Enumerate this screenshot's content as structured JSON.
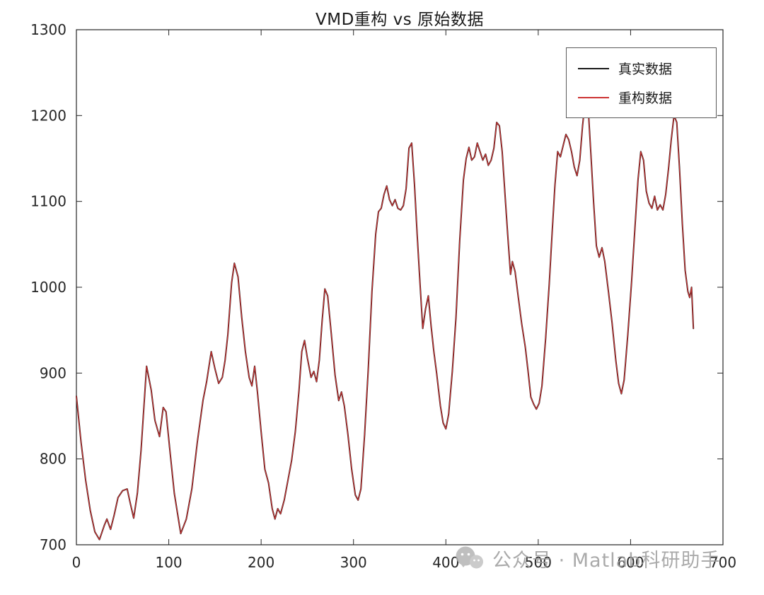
{
  "title": "VMD重构 vs 原始数据",
  "legend": {
    "items": [
      {
        "label": "真实数据",
        "color": "#1a1a1a"
      },
      {
        "label": "重构数据",
        "color": "#cc3333"
      }
    ]
  },
  "watermark": {
    "text": "公众号 · Matlab科研助手",
    "icon": "wechat-icon"
  },
  "axis_color": "#262626",
  "chart_data": {
    "type": "line",
    "title": "VMD重构 vs 原始数据",
    "xlabel": "",
    "ylabel": "",
    "xlim": [
      0,
      700
    ],
    "ylim": [
      700,
      1300
    ],
    "x_ticks": [
      0,
      100,
      200,
      300,
      400,
      500,
      600,
      700
    ],
    "y_ticks": [
      700,
      800,
      900,
      1000,
      1100,
      1200,
      1300
    ],
    "grid": false,
    "legend_position": "top-right",
    "x": [
      0,
      5,
      10,
      15,
      20,
      25,
      30,
      33,
      37,
      41,
      45,
      50,
      55,
      58,
      62,
      66,
      70,
      76,
      81,
      85,
      90,
      94,
      97,
      101,
      106,
      113,
      119,
      125,
      131,
      137,
      141,
      146,
      150,
      154,
      158,
      161,
      164,
      168,
      171,
      175,
      179,
      183,
      187,
      190,
      193,
      196,
      200,
      204,
      208,
      212,
      215,
      218,
      221,
      225,
      229,
      233,
      237,
      241,
      244,
      247,
      250,
      254,
      257,
      260,
      263,
      266,
      269,
      272,
      276,
      280,
      284,
      287,
      290,
      294,
      298,
      302,
      305,
      308,
      312,
      316,
      320,
      324,
      327,
      330,
      333,
      336,
      339,
      342,
      345,
      348,
      351,
      354,
      357,
      360,
      363,
      366,
      369,
      372,
      375,
      378,
      381,
      384,
      387,
      390,
      394,
      397,
      400,
      403,
      407,
      411,
      415,
      419,
      422,
      425,
      428,
      431,
      434,
      437,
      440,
      443,
      446,
      449,
      452,
      455,
      458,
      461,
      464,
      467,
      470,
      472,
      475,
      478,
      482,
      486,
      489,
      492,
      495,
      498,
      501,
      504,
      508,
      512,
      515,
      518,
      521,
      524,
      527,
      530,
      533,
      536,
      539,
      542,
      545,
      548,
      551,
      554,
      557,
      560,
      563,
      566,
      569,
      572,
      576,
      580,
      584,
      587,
      590,
      593,
      597,
      601,
      605,
      608,
      611,
      614,
      617,
      620,
      623,
      626,
      629,
      632,
      635,
      638,
      641,
      644,
      647,
      650,
      653,
      656,
      659,
      662,
      664,
      666,
      668
    ],
    "y": [
      873,
      820,
      775,
      740,
      715,
      706,
      722,
      730,
      718,
      735,
      755,
      763,
      765,
      750,
      731,
      760,
      810,
      908,
      880,
      845,
      826,
      860,
      855,
      812,
      760,
      713,
      730,
      765,
      820,
      868,
      890,
      925,
      905,
      888,
      895,
      915,
      945,
      1005,
      1028,
      1012,
      965,
      925,
      895,
      885,
      908,
      878,
      832,
      788,
      772,
      742,
      730,
      742,
      736,
      752,
      775,
      798,
      832,
      880,
      925,
      938,
      918,
      895,
      902,
      890,
      915,
      960,
      998,
      990,
      945,
      898,
      868,
      878,
      862,
      828,
      788,
      758,
      752,
      765,
      828,
      905,
      995,
      1062,
      1088,
      1092,
      1108,
      1118,
      1102,
      1095,
      1102,
      1092,
      1090,
      1095,
      1115,
      1162,
      1168,
      1120,
      1060,
      1005,
      952,
      975,
      990,
      955,
      925,
      900,
      862,
      842,
      835,
      852,
      902,
      965,
      1055,
      1125,
      1150,
      1163,
      1148,
      1152,
      1168,
      1158,
      1148,
      1155,
      1142,
      1148,
      1162,
      1192,
      1188,
      1158,
      1108,
      1060,
      1015,
      1030,
      1018,
      992,
      958,
      930,
      902,
      872,
      864,
      858,
      865,
      885,
      940,
      1005,
      1062,
      1118,
      1158,
      1152,
      1165,
      1178,
      1172,
      1158,
      1140,
      1130,
      1148,
      1188,
      1218,
      1210,
      1155,
      1098,
      1048,
      1035,
      1046,
      1030,
      995,
      958,
      915,
      888,
      876,
      892,
      945,
      1005,
      1075,
      1125,
      1158,
      1148,
      1112,
      1098,
      1092,
      1106,
      1090,
      1096,
      1090,
      1108,
      1138,
      1172,
      1200,
      1192,
      1138,
      1075,
      1020,
      995,
      988,
      1000,
      952
    ],
    "series": [
      {
        "name": "真实数据",
        "color": "#1a1a1a",
        "width": 2.0,
        "y_key": "y"
      },
      {
        "name": "重构数据",
        "color": "#cc3333",
        "width": 1.2,
        "y_key": "y"
      }
    ]
  }
}
